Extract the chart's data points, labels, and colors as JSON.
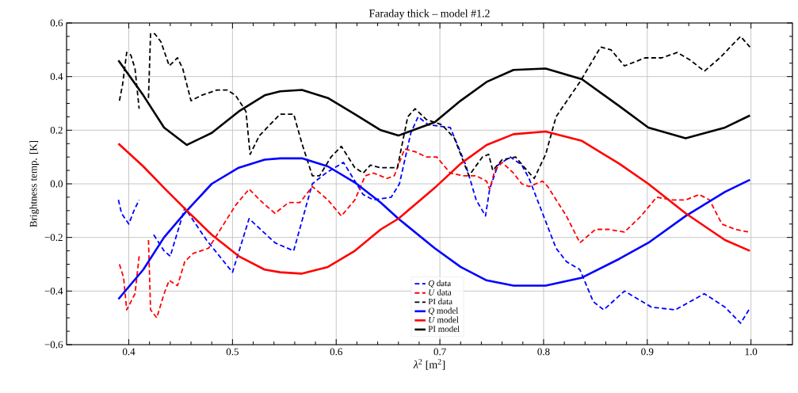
{
  "chart_data": {
    "type": "line",
    "title": "Faraday thick – model #1.2",
    "xlabel": "*λ*$^{2}$ [m$^{2}$]",
    "ylabel": "Brightness temp. [K]",
    "xlim": [
      0.34,
      1.04
    ],
    "ylim": [
      -0.6,
      0.6
    ],
    "xticks": [
      0.4,
      0.5,
      0.6,
      0.7,
      0.8,
      0.9,
      {
        "value": 1,
        "label": "1.0"
      }
    ],
    "yticks": [
      {
        "value": -0.6,
        "label": "−0.6"
      },
      {
        "value": -0.4,
        "label": "−0.4"
      },
      {
        "value": -0.2,
        "label": "−0.2"
      },
      {
        "value": 0,
        "label": "0.0"
      },
      0.2,
      0.4,
      0.6
    ],
    "grid": true,
    "legend": "bottom",
    "series": [
      {
        "name": "*Q* data",
        "color": "#0000ff",
        "line_style": "dashed",
        "x": [
          0.39,
          0.393,
          0.4,
          0.405,
          0.41,
          0.415,
          0.424,
          0.434,
          0.44,
          0.454,
          0.475,
          0.5,
          0.516,
          0.541,
          0.559,
          0.577,
          0.59,
          0.607,
          0.626,
          0.636,
          0.653,
          0.661,
          0.672,
          0.679,
          0.689,
          0.71,
          0.725,
          0.735,
          0.744,
          0.748,
          0.756,
          0.768,
          0.779,
          0.786,
          0.796,
          0.812,
          0.822,
          0.835,
          0.848,
          0.858,
          0.878,
          0.904,
          0.927,
          0.955,
          0.975,
          0.99,
          0.998
        ],
        "values": [
          -0.06,
          -0.11,
          -0.15,
          -0.1,
          -0.06,
          null,
          -0.19,
          -0.25,
          -0.27,
          -0.09,
          -0.21,
          -0.33,
          -0.13,
          -0.22,
          -0.25,
          0.0,
          0.04,
          0.08,
          -0.04,
          -0.06,
          -0.05,
          0.0,
          0.19,
          0.25,
          0.22,
          0.21,
          0.07,
          -0.06,
          -0.12,
          -0.02,
          0.07,
          0.1,
          0.07,
          0.02,
          -0.08,
          -0.24,
          -0.29,
          -0.32,
          -0.44,
          -0.47,
          -0.4,
          -0.46,
          -0.47,
          -0.41,
          -0.46,
          -0.52,
          -0.47
        ]
      },
      {
        "name": "*U* data",
        "color": "#ff0000",
        "line_style": "dashed",
        "x": [
          0.391,
          0.395,
          0.398,
          0.402,
          0.406,
          0.41,
          0.414,
          0.419,
          0.421,
          0.427,
          0.434,
          0.439,
          0.447,
          0.454,
          0.462,
          0.477,
          0.49,
          0.503,
          0.516,
          0.529,
          0.541,
          0.554,
          0.565,
          0.577,
          0.592,
          0.605,
          0.618,
          0.628,
          0.636,
          0.649,
          0.656,
          0.666,
          0.676,
          0.687,
          0.697,
          0.71,
          0.722,
          0.735,
          0.745,
          0.748,
          0.753,
          0.76,
          0.771,
          0.779,
          0.786,
          0.799,
          0.804,
          0.822,
          0.835,
          0.85,
          0.863,
          0.878,
          0.894,
          0.909,
          0.924,
          0.937,
          0.95,
          0.96,
          0.972,
          0.985,
          0.998
        ],
        "values": [
          -0.3,
          -0.35,
          -0.47,
          -0.44,
          -0.41,
          -0.27,
          null,
          -0.21,
          -0.47,
          -0.5,
          -0.41,
          -0.36,
          -0.38,
          -0.29,
          -0.26,
          -0.24,
          -0.16,
          -0.08,
          -0.02,
          -0.07,
          -0.11,
          -0.07,
          -0.07,
          -0.01,
          -0.06,
          -0.12,
          -0.06,
          0.03,
          0.04,
          0.02,
          0.03,
          0.13,
          0.12,
          0.1,
          0.1,
          0.04,
          0.03,
          0.03,
          0.01,
          -0.02,
          0.05,
          0.08,
          0.04,
          0.0,
          -0.01,
          0.01,
          -0.01,
          -0.12,
          -0.22,
          -0.17,
          -0.17,
          -0.18,
          -0.12,
          -0.05,
          -0.06,
          -0.06,
          -0.04,
          -0.06,
          -0.15,
          -0.17,
          -0.18
        ]
      },
      {
        "name": "PI data",
        "color": "#000000",
        "line_style": "dashed",
        "x": [
          0.391,
          0.394,
          0.398,
          0.402,
          0.406,
          0.41,
          0.414,
          0.419,
          0.421,
          0.425,
          0.431,
          0.439,
          0.447,
          0.452,
          0.46,
          0.47,
          0.485,
          0.495,
          0.503,
          0.513,
          0.517,
          0.526,
          0.536,
          0.546,
          0.559,
          0.567,
          0.577,
          0.584,
          0.595,
          0.605,
          0.618,
          0.626,
          0.633,
          0.643,
          0.659,
          0.669,
          0.676,
          0.687,
          0.702,
          0.714,
          0.728,
          0.741,
          0.747,
          0.751,
          0.76,
          0.773,
          0.784,
          0.791,
          0.802,
          0.812,
          0.835,
          0.855,
          0.865,
          0.878,
          0.898,
          0.914,
          0.929,
          0.942,
          0.955,
          0.97,
          0.99,
          0.999
        ],
        "values": [
          0.31,
          0.37,
          0.49,
          0.48,
          0.43,
          0.28,
          null,
          0.32,
          0.56,
          0.56,
          0.53,
          0.44,
          0.47,
          0.43,
          0.31,
          0.33,
          0.35,
          0.35,
          0.33,
          0.27,
          0.11,
          0.18,
          0.22,
          0.26,
          0.26,
          0.15,
          0.03,
          0.03,
          0.1,
          0.14,
          0.06,
          0.04,
          0.07,
          0.06,
          0.06,
          0.25,
          0.28,
          0.24,
          0.22,
          0.17,
          0.03,
          0.1,
          0.11,
          0.05,
          0.09,
          0.1,
          0.05,
          0.02,
          0.11,
          0.25,
          0.38,
          0.51,
          0.5,
          0.44,
          0.47,
          0.47,
          0.49,
          0.46,
          0.42,
          0.47,
          0.55,
          0.51
        ]
      },
      {
        "name": "*Q* model",
        "color": "#0000ff",
        "line_style": "solid",
        "x": [
          0.39,
          0.414,
          0.434,
          0.456,
          0.48,
          0.506,
          0.531,
          0.546,
          0.567,
          0.592,
          0.618,
          0.643,
          0.66,
          0.695,
          0.72,
          0.745,
          0.771,
          0.802,
          0.837,
          0.873,
          0.901,
          0.937,
          0.975,
          0.999
        ],
        "values": [
          -0.43,
          -0.32,
          -0.2,
          -0.1,
          0.0,
          0.06,
          0.09,
          0.095,
          0.095,
          0.065,
          0.005,
          -0.07,
          -0.13,
          -0.24,
          -0.31,
          -0.36,
          -0.38,
          -0.38,
          -0.35,
          -0.28,
          -0.22,
          -0.12,
          -0.03,
          0.015
        ]
      },
      {
        "name": "*U* model",
        "color": "#ff0000",
        "line_style": "solid",
        "x": [
          0.39,
          0.414,
          0.434,
          0.456,
          0.48,
          0.506,
          0.531,
          0.546,
          0.567,
          0.592,
          0.618,
          0.643,
          0.66,
          0.695,
          0.72,
          0.745,
          0.771,
          0.802,
          0.837,
          0.873,
          0.901,
          0.937,
          0.975,
          0.999
        ],
        "values": [
          0.15,
          0.065,
          -0.015,
          -0.1,
          -0.19,
          -0.27,
          -0.32,
          -0.33,
          -0.335,
          -0.31,
          -0.25,
          -0.17,
          -0.13,
          -0.015,
          0.075,
          0.145,
          0.185,
          0.195,
          0.16,
          0.075,
          0.0,
          -0.11,
          -0.21,
          -0.25
        ]
      },
      {
        "name": "PI model",
        "color": "#000000",
        "line_style": "solid",
        "x": [
          0.39,
          0.414,
          0.434,
          0.456,
          0.48,
          0.506,
          0.531,
          0.546,
          0.567,
          0.592,
          0.618,
          0.643,
          0.66,
          0.695,
          0.72,
          0.745,
          0.771,
          0.802,
          0.837,
          0.873,
          0.901,
          0.937,
          0.975,
          0.999
        ],
        "values": [
          0.46,
          0.33,
          0.21,
          0.145,
          0.19,
          0.27,
          0.33,
          0.345,
          0.35,
          0.32,
          0.26,
          0.2,
          0.18,
          0.23,
          0.31,
          0.38,
          0.425,
          0.43,
          0.39,
          0.29,
          0.21,
          0.17,
          0.21,
          0.255
        ]
      }
    ]
  }
}
